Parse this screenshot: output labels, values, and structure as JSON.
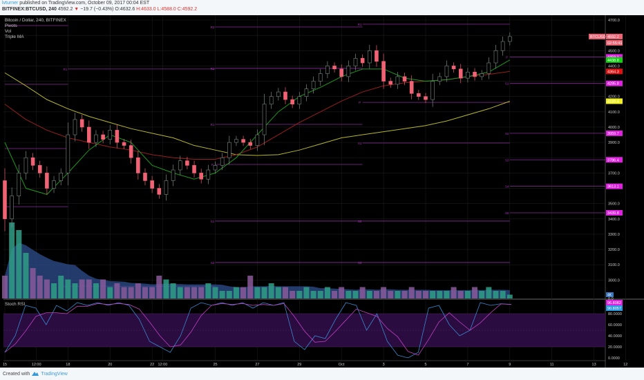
{
  "header": {
    "author": "lvturner",
    "published": "published on TradingView.com, October 09, 2017 00:04 EST",
    "symbol": "BITFINEX:BTCUSD, 240",
    "last": "4592.2",
    "change_arrow": "▼",
    "change": "−19.7 (−0.43%)",
    "open": "O:4632.6",
    "high": "H:4633.0",
    "low": "L:4588.0",
    "close": "C:4592.2"
  },
  "legend": {
    "title": "Bitcoin / Dollar, 240, BITFINEX",
    "items": [
      "Pivots",
      "Vol",
      "Triple MA"
    ],
    "stoch": "Stoch RSI"
  },
  "footer": {
    "created_with": "Created with",
    "brand": "TradingView"
  },
  "colors": {
    "background": "#000000",
    "up_candle_border": "#7c8c84",
    "down_candle": "#f06374",
    "pivot": "#8a2c9c",
    "ma_fast": "#1e9a1e",
    "ma_mid": "#9a1e1e",
    "ma_slow": "#b8b82a",
    "vol_up": "#2f9e86",
    "vol_down": "#8a5a9a",
    "vol_ma": "#2f4f8f",
    "stoch_k": "#3a8ad0",
    "stoch_d": "#c040c0",
    "stoch_band": "#2a0c40"
  },
  "chart_data": [
    {
      "type": "candlestick",
      "title": "Bitcoin / Dollar, 240, BITFINEX",
      "x_range": [
        "2017-09-15",
        "2017-10-14 12:00"
      ],
      "ylim": [
        2900,
        4720
      ],
      "first_open": 3650,
      "candle_close": [
        3400,
        3550,
        3700,
        3800,
        3750,
        3700,
        3600,
        3650,
        3700,
        3950,
        4050,
        4000,
        3900,
        3950,
        3920,
        3980,
        3900,
        3880,
        3800,
        3700,
        3650,
        3600,
        3560,
        3650,
        3720,
        3780,
        3750,
        3700,
        3660,
        3720,
        3750,
        3800,
        3900,
        3920,
        3900,
        3880,
        3950,
        4150,
        4200,
        4230,
        4180,
        4150,
        4200,
        4250,
        4300,
        4350,
        4400,
        4380,
        4330,
        4400,
        4450,
        4420,
        4500,
        4430,
        4300,
        4280,
        4330,
        4300,
        4220,
        4200,
        4180,
        4300,
        4330,
        4400,
        4380,
        4320,
        4360,
        4330,
        4350,
        4420,
        4500,
        4560,
        4592.2
      ],
      "volume": [
        6,
        20,
        18,
        12,
        8,
        6,
        5,
        4,
        6,
        5,
        4,
        5,
        5,
        4,
        5,
        3,
        4,
        3,
        3,
        4,
        3,
        3,
        6,
        5,
        4,
        3,
        3,
        3,
        3,
        4,
        3,
        2,
        2,
        3,
        3,
        6,
        3,
        3,
        4,
        3,
        3,
        2,
        2,
        3,
        2,
        2,
        3,
        2,
        3,
        2,
        2,
        3,
        2,
        2,
        3,
        2,
        2,
        2,
        3,
        2,
        2,
        2,
        2,
        2,
        3,
        2,
        2,
        3,
        2,
        3,
        2,
        2,
        1
      ],
      "triple_ma": {
        "dates": [
          "2017-09-15",
          "2017-09-16",
          "2017-09-17",
          "2017-09-18",
          "2017-09-19",
          "2017-09-20",
          "2017-09-21",
          "2017-09-22",
          "2017-09-23",
          "2017-09-24",
          "2017-09-25",
          "2017-09-26",
          "2017-09-27",
          "2017-09-28",
          "2017-09-29",
          "2017-09-30",
          "2017-10-01",
          "2017-10-02",
          "2017-10-03",
          "2017-10-04",
          "2017-10-05",
          "2017-10-06",
          "2017-10-07",
          "2017-10-08",
          "2017-10-09"
        ],
        "fast": [
          3900,
          3600,
          3560,
          3700,
          3850,
          3950,
          3900,
          3750,
          3700,
          3660,
          3700,
          3800,
          3950,
          4100,
          4200,
          4260,
          4330,
          4380,
          4380,
          4320,
          4300,
          4310,
          4330,
          4360,
          4438.8
        ],
        "mid": [
          4150,
          4050,
          3980,
          3930,
          3900,
          3870,
          3850,
          3820,
          3800,
          3790,
          3790,
          3820,
          3870,
          3950,
          4030,
          4100,
          4170,
          4230,
          4270,
          4290,
          4300,
          4310,
          4330,
          4345,
          4364.3
        ],
        "slow": [
          4355,
          4270,
          4180,
          4120,
          4070,
          4030,
          3990,
          3960,
          3930,
          3880,
          3850,
          3820,
          3815,
          3820,
          3850,
          3890,
          3930,
          3950,
          3970,
          3990,
          4010,
          4040,
          4080,
          4120,
          4169.4
        ]
      },
      "pivots": [
        {
          "start": "2017-09-15",
          "end": "2017-09-18",
          "levels": [
            {
              "label": "",
              "value": 4664
            },
            {
              "label": "",
              "value": 4280
            },
            {
              "label": "",
              "value": 3860
            },
            {
              "label": "",
              "value": 3480
            }
          ]
        },
        {
          "start": "2017-09-18",
          "end": "2017-09-25",
          "levels": [
            {
              "label": "R1",
              "value": 4380
            },
            {
              "label": "S1",
              "value": 2960
            }
          ]
        },
        {
          "start": "2017-09-25",
          "end": "2017-10-02",
          "levels": [
            {
              "label": "R3",
              "value": 4655
            },
            {
              "label": "R2",
              "value": 4384
            },
            {
              "label": "R1",
              "value": 4018
            },
            {
              "label": "P",
              "value": 3756
            },
            {
              "label": "S1",
              "value": 3386
            },
            {
              "label": "S2",
              "value": 3115
            }
          ]
        },
        {
          "start": "2017-10-02",
          "end": "2017-10-09",
          "levels": [
            {
              "label": "R1",
              "value": 4673
            },
            {
              "label": "P",
              "value": 4162
            },
            {
              "label": "S1",
              "value": 3896
            },
            {
              "label": "S2",
              "value": 3386
            },
            {
              "label": "S3",
              "value": 3115
            }
          ]
        },
        {
          "start": "2017-10-09",
          "end": "2017-10-16",
          "levels": [
            {
              "label": "P",
              "value": 4459.1
            },
            {
              "label": "S1",
              "value": 4285.8
            },
            {
              "label": "S2",
              "value": 3959.7
            },
            {
              "label": "S3",
              "value": 3786.4
            },
            {
              "label": "S4",
              "value": 3613.1
            },
            {
              "label": "S5",
              "value": 3439.8
            }
          ]
        }
      ],
      "price_ticks": [
        "4700.0",
        "4500.0",
        "4400.0",
        "4200.0",
        "4100.0",
        "4000.0",
        "3900.0",
        "3700.0",
        "3500.0",
        "3400.0",
        "3300.0",
        "3200.0",
        "3100.0",
        "3000.0",
        "0.0"
      ],
      "price_badges": [
        {
          "text": "4592.2",
          "symbol": "BTCUSD",
          "sub": "02:55:41",
          "value": 4592.2,
          "color": "#f06374"
        },
        {
          "text": "4459.1",
          "value": 4459.1,
          "color": "#e020e0"
        },
        {
          "text": "4438.8",
          "value": 4438.8,
          "color": "#10d010"
        },
        {
          "text": "4364.3",
          "value": 4364.3,
          "color": "#e01010"
        },
        {
          "text": "4285.8",
          "value": 4285.8,
          "color": "#e020e0"
        },
        {
          "text": "4169.4",
          "value": 4169.4,
          "color": "#f0f020"
        },
        {
          "text": "3959.7",
          "value": 3959.7,
          "color": "#e020e0"
        },
        {
          "text": "3786.4",
          "value": 3786.4,
          "color": "#e020e0"
        },
        {
          "text": "3613.1",
          "value": 3613.1,
          "color": "#e020e0"
        },
        {
          "text": "3439.8",
          "value": 3439.8,
          "color": "#e020e0"
        }
      ],
      "volume_badge": "4K",
      "time_ticks": [
        {
          "label": "15",
          "date": "2017-09-15 00:00"
        },
        {
          "label": "12:00",
          "date": "2017-09-16 12:00"
        },
        {
          "label": "18",
          "date": "2017-09-18 00:00"
        },
        {
          "label": "20",
          "date": "2017-09-20 00:00"
        },
        {
          "label": "22",
          "date": "2017-09-22 00:00"
        },
        {
          "label": "12:00",
          "date": "2017-09-22 12:00"
        },
        {
          "label": "25",
          "date": "2017-09-25 00:00"
        },
        {
          "label": "27",
          "date": "2017-09-27 00:00"
        },
        {
          "label": "29",
          "date": "2017-09-29 00:00"
        },
        {
          "label": "Oct",
          "date": "2017-10-01 00:00"
        },
        {
          "label": "3",
          "date": "2017-10-03 00:00"
        },
        {
          "label": "5",
          "date": "2017-10-05 00:00"
        },
        {
          "label": "7",
          "date": "2017-10-07 00:00"
        },
        {
          "label": "9",
          "date": "2017-10-09 00:00"
        },
        {
          "label": "11",
          "date": "2017-10-11 00:00"
        },
        {
          "label": "13",
          "date": "2017-10-13 00:00"
        },
        {
          "label": "12",
          "date": "2017-10-14 12:00"
        }
      ]
    },
    {
      "type": "line",
      "title": "Stoch RSI",
      "ylim": [
        0,
        100
      ],
      "band": [
        20,
        80
      ],
      "y_ticks": [
        "80.0000",
        "60.0000",
        "40.0000",
        "20.0000",
        "0.0000"
      ],
      "k": [
        10,
        40,
        95,
        90,
        60,
        95,
        85,
        100,
        95,
        100,
        95,
        100,
        95,
        70,
        30,
        20,
        10,
        40,
        90,
        100,
        95,
        100,
        95,
        100,
        90,
        100,
        95,
        100,
        30,
        15,
        40,
        35,
        70,
        100,
        95,
        50,
        80,
        30,
        5,
        0,
        10,
        90,
        95,
        60,
        40,
        50,
        100,
        95,
        98,
        96.8082
      ],
      "k_label": "96.8082",
      "d_label": "90.8057"
    }
  ]
}
